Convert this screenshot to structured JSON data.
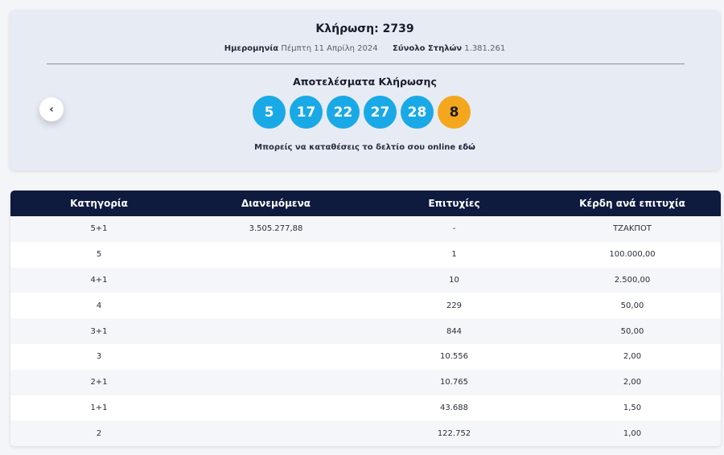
{
  "draw": {
    "title": "Κλήρωση: 2739",
    "date_label": "Ημερομηνία",
    "date_value": "Πέμπτη 11 Απρίλη 2024",
    "columns_label": "Σύνολο Στηλών",
    "columns_value": "1.381.261",
    "results_title": "Αποτελέσματα Κλήρωσης",
    "numbers": [
      "5",
      "17",
      "22",
      "27",
      "28"
    ],
    "bonus": "8",
    "online_text": "Μπορείς να καταθέσεις το δελτίο σου online",
    "online_link": "εδώ",
    "prev_icon": "chevron-left-icon"
  },
  "colors": {
    "main_ball": "#19a9e6",
    "bonus_ball": "#f4a71d",
    "table_header": "#0e1a3e"
  },
  "table": {
    "headers": [
      "Κατηγορία",
      "Διανεμόμενα",
      "Επιτυχίες",
      "Κέρδη ανά επιτυχία"
    ],
    "rows": [
      [
        "5+1",
        "3.505.277,88",
        "-",
        "ΤΖΑΚΠΟΤ"
      ],
      [
        "5",
        "",
        "1",
        "100.000,00"
      ],
      [
        "4+1",
        "",
        "10",
        "2.500,00"
      ],
      [
        "4",
        "",
        "229",
        "50,00"
      ],
      [
        "3+1",
        "",
        "844",
        "50,00"
      ],
      [
        "3",
        "",
        "10.556",
        "2,00"
      ],
      [
        "2+1",
        "",
        "10.765",
        "2,00"
      ],
      [
        "1+1",
        "",
        "43.688",
        "1,50"
      ],
      [
        "2",
        "",
        "122.752",
        "1,00"
      ]
    ]
  }
}
